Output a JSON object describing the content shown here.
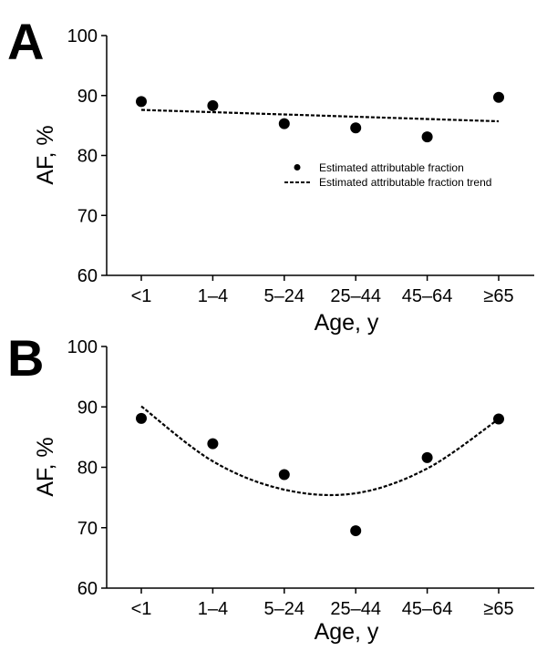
{
  "chart_data": [
    {
      "panel": "A",
      "type": "scatter",
      "categories": [
        "<1",
        "1–4",
        "5–24",
        "25–44",
        "45–64",
        "≥65"
      ],
      "series": [
        {
          "name": "Estimated attributable fraction",
          "kind": "points",
          "values": [
            89.0,
            88.3,
            85.3,
            84.6,
            83.1,
            89.7
          ]
        },
        {
          "name": "Estimated attributable fraction trend",
          "kind": "linear-trend",
          "values": [
            87.6,
            87.2,
            86.8,
            86.4,
            86.0,
            85.7
          ]
        }
      ],
      "xlabel": "Age, y",
      "ylabel": "AF, %",
      "ylim": [
        60,
        100
      ],
      "yticks": [
        60,
        70,
        80,
        90,
        100
      ],
      "legend": "right",
      "grid": false
    },
    {
      "panel": "B",
      "type": "scatter",
      "categories": [
        "<1",
        "1–4",
        "5–24",
        "25–44",
        "45–64",
        "≥65"
      ],
      "series": [
        {
          "name": "Estimated attributable fraction",
          "kind": "points",
          "values": [
            88.1,
            83.9,
            78.8,
            69.5,
            81.6,
            88.0
          ]
        },
        {
          "name": "Estimated attributable fraction trend",
          "kind": "quadratic-trend",
          "values": [
            90.1,
            81.0,
            76.3,
            75.7,
            79.8,
            88.0
          ]
        }
      ],
      "xlabel": "Age, y",
      "ylabel": "AF, %",
      "ylim": [
        60,
        100
      ],
      "yticks": [
        60,
        70,
        80,
        90,
        100
      ],
      "grid": false
    }
  ]
}
